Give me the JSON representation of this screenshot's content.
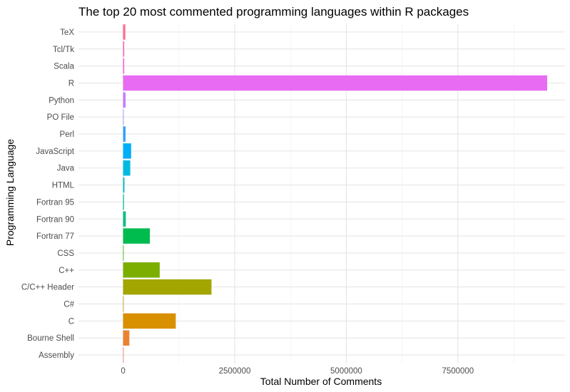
{
  "chart_data": {
    "type": "bar",
    "orientation": "horizontal",
    "title": "The top 20 most commented programming languages within R packages",
    "xlabel": "Total Number of Comments",
    "ylabel": "Programming Language",
    "xlim": [
      -1000000,
      9900000
    ],
    "xticks": [
      0,
      2500000,
      5000000,
      7500000
    ],
    "xtick_labels": [
      "0",
      "2500000",
      "5000000",
      "7500000"
    ],
    "grid": true,
    "legend": "none",
    "categories": [
      "Assembly",
      "Bourne Shell",
      "C",
      "C#",
      "C/C++ Header",
      "C++",
      "CSS",
      "Fortran 77",
      "Fortran 90",
      "Fortran 95",
      "HTML",
      "Java",
      "JavaScript",
      "Perl",
      "PO File",
      "Python",
      "R",
      "Scala",
      "Tcl/Tk",
      "TeX"
    ],
    "values": [
      2000,
      140000,
      1180000,
      10000,
      1980000,
      820000,
      12000,
      600000,
      60000,
      20000,
      30000,
      160000,
      180000,
      55000,
      8000,
      55000,
      9500000,
      25000,
      25000,
      50000
    ],
    "colors": [
      "#F8766D",
      "#EA8331",
      "#D89000",
      "#C09B00",
      "#A3A500",
      "#7CAE00",
      "#39B600",
      "#00BB4E",
      "#00BF7D",
      "#00C1A3",
      "#00BFC4",
      "#00BAE0",
      "#00B0F6",
      "#35A2FF",
      "#9590FF",
      "#C77CFF",
      "#E76BF3",
      "#FA62DB",
      "#FF62BC",
      "#FF6C91"
    ]
  }
}
